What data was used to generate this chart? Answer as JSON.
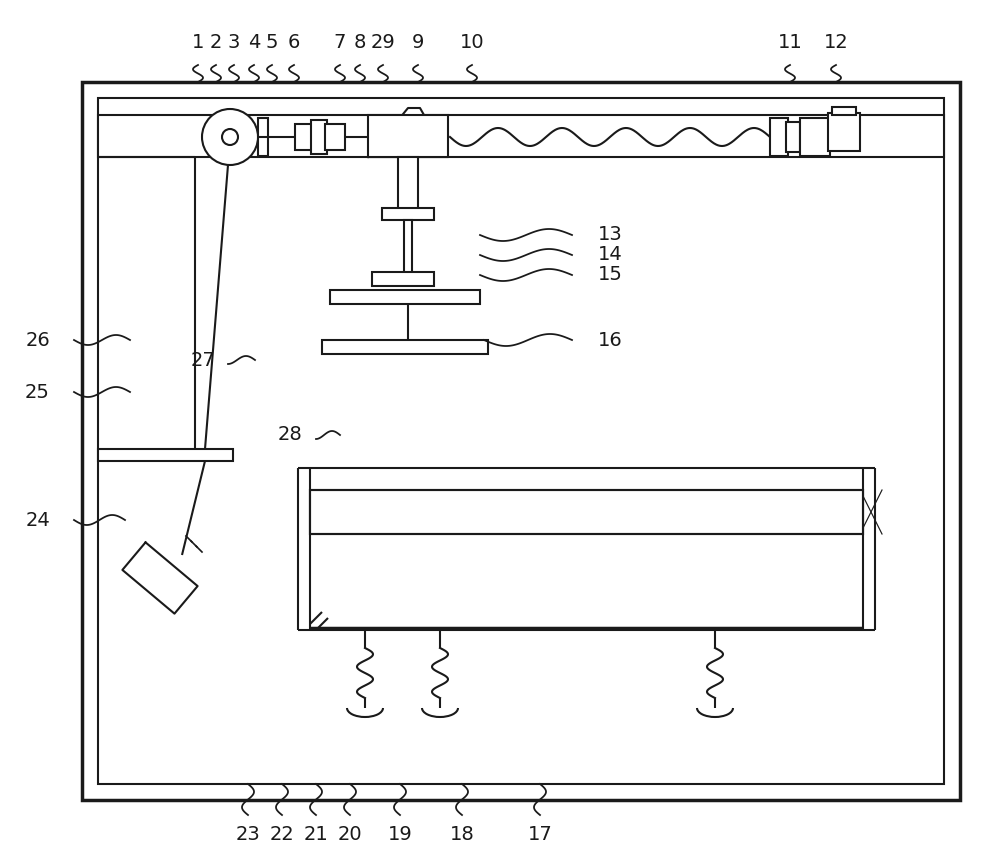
{
  "bg": "#ffffff",
  "lc": "#1a1a1a",
  "lw": 1.5,
  "lw_thick": 2.5
}
